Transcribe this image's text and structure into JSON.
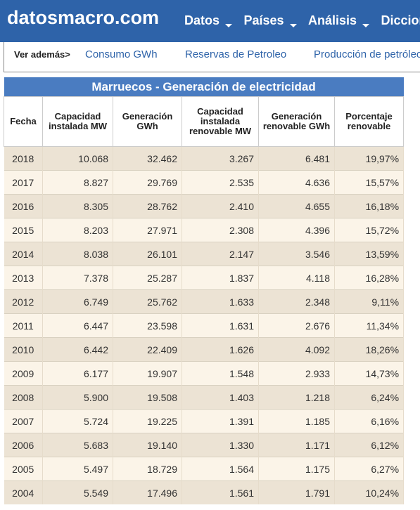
{
  "header": {
    "logo": "datosmacro.com",
    "nav": [
      "Datos",
      "Países",
      "Análisis",
      "Diccion"
    ]
  },
  "see_also": {
    "label": "Ver además>",
    "links": [
      "Consumo GWh",
      "Reservas de Petroleo",
      "Producción de petróleo"
    ]
  },
  "table": {
    "title": "Marruecos - Generación de electricidad",
    "columns": [
      "Fecha",
      "Capacidad instalada MW",
      "Generación GWh",
      "Capacidad instalada renovable MW",
      "Generación renovable GWh",
      "Porcentaje renovable"
    ],
    "rows": [
      [
        "2018",
        "10.068",
        "32.462",
        "3.267",
        "6.481",
        "19,97%"
      ],
      [
        "2017",
        "8.827",
        "29.769",
        "2.535",
        "4.636",
        "15,57%"
      ],
      [
        "2016",
        "8.305",
        "28.762",
        "2.410",
        "4.655",
        "16,18%"
      ],
      [
        "2015",
        "8.203",
        "27.971",
        "2.308",
        "4.396",
        "15,72%"
      ],
      [
        "2014",
        "8.038",
        "26.101",
        "2.147",
        "3.546",
        "13,59%"
      ],
      [
        "2013",
        "7.378",
        "25.287",
        "1.837",
        "4.118",
        "16,28%"
      ],
      [
        "2012",
        "6.749",
        "25.762",
        "1.633",
        "2.348",
        "9,11%"
      ],
      [
        "2011",
        "6.447",
        "23.598",
        "1.631",
        "2.676",
        "11,34%"
      ],
      [
        "2010",
        "6.442",
        "22.409",
        "1.626",
        "4.092",
        "18,26%"
      ],
      [
        "2009",
        "6.177",
        "19.907",
        "1.548",
        "2.933",
        "14,73%"
      ],
      [
        "2008",
        "5.900",
        "19.508",
        "1.403",
        "1.218",
        "6,24%"
      ],
      [
        "2007",
        "5.724",
        "19.225",
        "1.391",
        "1.185",
        "6,16%"
      ],
      [
        "2006",
        "5.683",
        "19.140",
        "1.330",
        "1.171",
        "6,12%"
      ],
      [
        "2005",
        "5.497",
        "18.729",
        "1.564",
        "1.175",
        "6,27%"
      ],
      [
        "2004",
        "5.549",
        "17.496",
        "1.561",
        "1.791",
        "10,24%"
      ]
    ]
  },
  "colors": {
    "header_bg": "#2e63a9",
    "title_bg": "#4a7cc1",
    "row_dark": "#ece3d4",
    "row_light": "#fbf4e8",
    "link": "#2e63a9"
  }
}
